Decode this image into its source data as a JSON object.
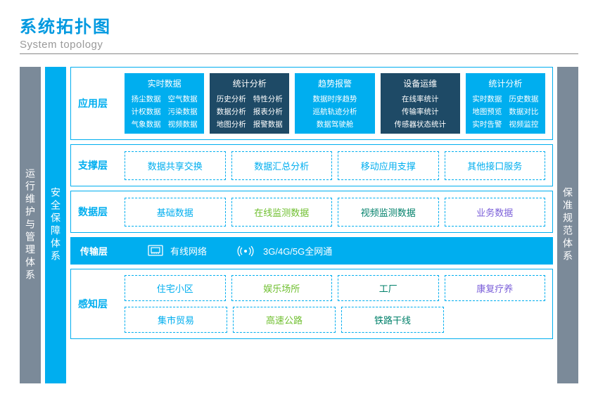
{
  "title": {
    "cn": "系统拓扑图",
    "en": "System topology"
  },
  "colors": {
    "primary": "#00aeef",
    "dark": "#1e4a66",
    "grey": "#7b8a99",
    "cyan": "#00aeef",
    "green": "#6fbf2f",
    "dgreen": "#00806a",
    "purple": "#7b5fd9"
  },
  "sidebars": {
    "left": "运行维护与管理体系",
    "security": "安全保障体系",
    "right": "保准规范体系"
  },
  "layers": {
    "app": {
      "label": "应用层",
      "cards": [
        {
          "bg": "cyan",
          "title": "实时数据",
          "cols": 2,
          "items": [
            "扬尘数据",
            "空气数据",
            "计权数据",
            "污染数据",
            "气象数据",
            "视频数据"
          ]
        },
        {
          "bg": "dark",
          "title": "统计分析",
          "cols": 2,
          "items": [
            "历史分析",
            "特性分析",
            "数据分析",
            "报表分析",
            "地图分析",
            "报警数据"
          ]
        },
        {
          "bg": "cyan",
          "title": "趋势报警",
          "cols": 1,
          "items": [
            "数据时序趋势",
            "巡航轨迹分析",
            "数据驾驶舱"
          ]
        },
        {
          "bg": "dark",
          "title": "设备运维",
          "cols": 1,
          "items": [
            "在线率统计",
            "传输率统计",
            "传感器状态统计"
          ]
        },
        {
          "bg": "cyan",
          "title": "统计分析",
          "cols": 2,
          "items": [
            "实时数据",
            "历史数据",
            "地图预览",
            "数据对比",
            "实时告警",
            "视频监控"
          ]
        }
      ]
    },
    "support": {
      "label": "支撑层",
      "items": [
        {
          "text": "数据共享交换",
          "cls": "t-cyan"
        },
        {
          "text": "数据汇总分析",
          "cls": "t-cyan"
        },
        {
          "text": "移动应用支撑",
          "cls": "t-cyan"
        },
        {
          "text": "其他接口服务",
          "cls": "t-cyan"
        }
      ]
    },
    "data": {
      "label": "数据层",
      "items": [
        {
          "text": "基础数据",
          "cls": "t-cyan"
        },
        {
          "text": "在线监测数据",
          "cls": "t-green"
        },
        {
          "text": "视频监测数据",
          "cls": "t-dgreen"
        },
        {
          "text": "业务数据",
          "cls": "t-purple"
        }
      ]
    },
    "transport": {
      "label": "传输层",
      "wired": "有线网络",
      "wireless": "3G/4G/5G全网通"
    },
    "perception": {
      "label": "感知层",
      "rows": [
        [
          {
            "text": "住宅小区",
            "cls": "t-cyan"
          },
          {
            "text": "娱乐场所",
            "cls": "t-green"
          },
          {
            "text": "工厂",
            "cls": "t-dgreen"
          },
          {
            "text": "康复疗养",
            "cls": "t-purple"
          }
        ],
        [
          {
            "text": "集市贸易",
            "cls": "t-cyan"
          },
          {
            "text": "高速公路",
            "cls": "t-green"
          },
          {
            "text": "铁路干线",
            "cls": "t-dgreen"
          }
        ]
      ]
    }
  }
}
